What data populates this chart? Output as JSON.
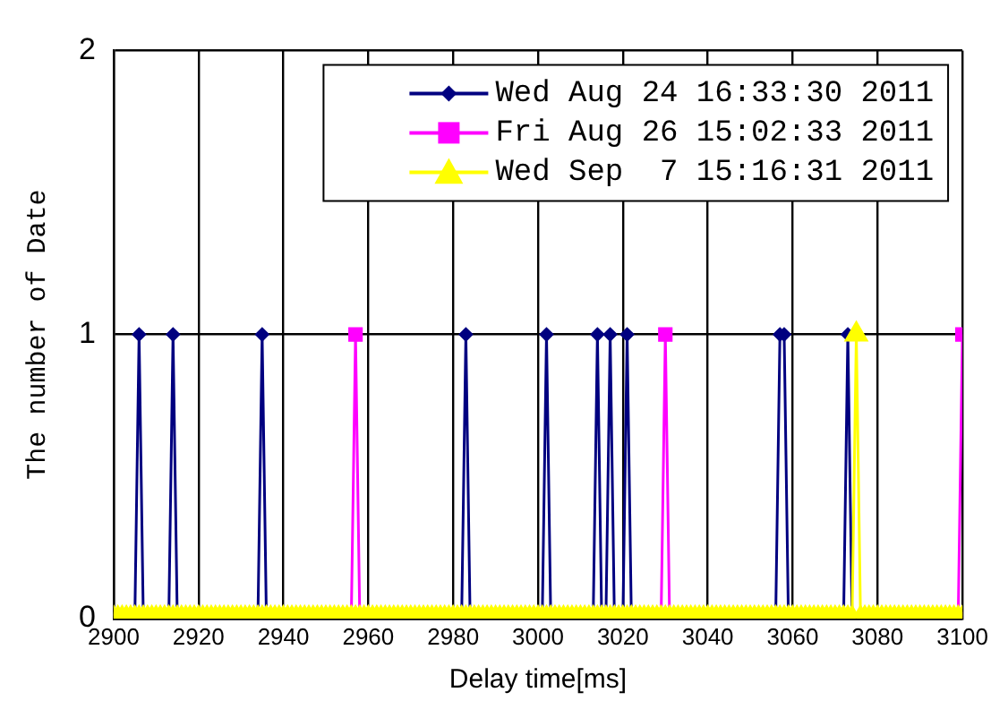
{
  "chart_data": {
    "type": "line",
    "xlabel": "Delay time[ms]",
    "ylabel": "The number of Date",
    "x": [
      2900,
      2901,
      2902,
      2903,
      2904,
      2905,
      2906,
      2907,
      2908,
      2909,
      2910,
      2911,
      2912,
      2913,
      2914,
      2915,
      2916,
      2917,
      2918,
      2919,
      2920,
      2921,
      2922,
      2923,
      2924,
      2925,
      2926,
      2927,
      2928,
      2929,
      2930,
      2931,
      2932,
      2933,
      2934,
      2935,
      2936,
      2937,
      2938,
      2939,
      2940,
      2941,
      2942,
      2943,
      2944,
      2945,
      2946,
      2947,
      2948,
      2949,
      2950,
      2951,
      2952,
      2953,
      2954,
      2955,
      2956,
      2957,
      2958,
      2959,
      2960,
      2961,
      2962,
      2963,
      2964,
      2965,
      2966,
      2967,
      2968,
      2969,
      2970,
      2971,
      2972,
      2973,
      2974,
      2975,
      2976,
      2977,
      2978,
      2979,
      2980,
      2981,
      2982,
      2983,
      2984,
      2985,
      2986,
      2987,
      2988,
      2989,
      2990,
      2991,
      2992,
      2993,
      2994,
      2995,
      2996,
      2997,
      2998,
      2999,
      3000,
      3001,
      3002,
      3003,
      3004,
      3005,
      3006,
      3007,
      3008,
      3009,
      3010,
      3011,
      3012,
      3013,
      3014,
      3015,
      3016,
      3017,
      3018,
      3019,
      3020,
      3021,
      3022,
      3023,
      3024,
      3025,
      3026,
      3027,
      3028,
      3029,
      3030,
      3031,
      3032,
      3033,
      3034,
      3035,
      3036,
      3037,
      3038,
      3039,
      3040,
      3041,
      3042,
      3043,
      3044,
      3045,
      3046,
      3047,
      3048,
      3049,
      3050,
      3051,
      3052,
      3053,
      3054,
      3055,
      3056,
      3057,
      3058,
      3059,
      3060,
      3061,
      3062,
      3063,
      3064,
      3065,
      3066,
      3067,
      3068,
      3069,
      3070,
      3071,
      3072,
      3073,
      3074,
      3075,
      3076,
      3077,
      3078,
      3079,
      3080,
      3081,
      3082,
      3083,
      3084,
      3085,
      3086,
      3087,
      3088,
      3089,
      3090,
      3091,
      3092,
      3093,
      3094,
      3095,
      3096,
      3097,
      3098,
      3099,
      3100
    ],
    "series": [
      {
        "name": "Wed Aug 24 16:33:30 2011",
        "color": "#000080",
        "marker": "diamond",
        "values": [
          null,
          null,
          null,
          null,
          null,
          0,
          1,
          0,
          null,
          null,
          null,
          null,
          null,
          0,
          1,
          0,
          null,
          null,
          null,
          null,
          null,
          null,
          null,
          null,
          null,
          null,
          null,
          null,
          null,
          null,
          null,
          null,
          null,
          null,
          0,
          1,
          0,
          null,
          null,
          null,
          null,
          null,
          null,
          null,
          null,
          null,
          null,
          null,
          null,
          null,
          null,
          null,
          null,
          null,
          null,
          null,
          null,
          null,
          null,
          null,
          null,
          null,
          null,
          null,
          null,
          null,
          null,
          null,
          null,
          null,
          null,
          null,
          null,
          null,
          null,
          null,
          null,
          null,
          null,
          null,
          null,
          null,
          0,
          1,
          0,
          null,
          null,
          null,
          null,
          null,
          null,
          null,
          null,
          null,
          null,
          null,
          null,
          null,
          null,
          null,
          null,
          0,
          1,
          0,
          null,
          null,
          null,
          null,
          null,
          null,
          null,
          null,
          null,
          0,
          1,
          0,
          0,
          1,
          0,
          null,
          0,
          1,
          0,
          null,
          null,
          null,
          null,
          null,
          null,
          null,
          null,
          null,
          null,
          null,
          null,
          null,
          null,
          null,
          null,
          null,
          null,
          null,
          null,
          null,
          null,
          null,
          null,
          null,
          null,
          null,
          null,
          null,
          null,
          null,
          null,
          null,
          0,
          1,
          1,
          0,
          null,
          null,
          null,
          null,
          null,
          null,
          null,
          null,
          null,
          null,
          null,
          null,
          0,
          1,
          0,
          null,
          null,
          null,
          null,
          null,
          null,
          null,
          null,
          null,
          null,
          null,
          null,
          null,
          null,
          null,
          null,
          null,
          null,
          null,
          null,
          null,
          null,
          null,
          null,
          null,
          null
        ]
      },
      {
        "name": "Fri Aug 26 15:02:33 2011",
        "color": "#ff00ff",
        "marker": "square",
        "values": [
          null,
          null,
          null,
          null,
          null,
          null,
          null,
          null,
          null,
          null,
          null,
          null,
          null,
          null,
          null,
          null,
          null,
          null,
          null,
          null,
          null,
          null,
          null,
          null,
          null,
          null,
          null,
          null,
          null,
          null,
          null,
          null,
          null,
          null,
          null,
          null,
          null,
          null,
          null,
          null,
          null,
          null,
          null,
          null,
          null,
          null,
          null,
          null,
          null,
          null,
          null,
          null,
          null,
          null,
          null,
          null,
          0,
          1,
          0,
          null,
          null,
          null,
          null,
          null,
          null,
          null,
          null,
          null,
          null,
          null,
          null,
          null,
          null,
          null,
          null,
          null,
          null,
          null,
          null,
          null,
          null,
          null,
          null,
          null,
          null,
          null,
          null,
          null,
          null,
          null,
          null,
          null,
          null,
          null,
          null,
          null,
          null,
          null,
          null,
          null,
          null,
          null,
          null,
          null,
          null,
          null,
          null,
          null,
          null,
          null,
          null,
          null,
          null,
          null,
          null,
          null,
          null,
          null,
          null,
          null,
          null,
          null,
          null,
          null,
          null,
          null,
          null,
          null,
          null,
          0,
          1,
          0,
          null,
          null,
          null,
          null,
          null,
          null,
          null,
          null,
          null,
          null,
          null,
          null,
          null,
          null,
          null,
          null,
          null,
          null,
          null,
          null,
          null,
          null,
          null,
          null,
          null,
          null,
          null,
          null,
          null,
          null,
          null,
          null,
          null,
          null,
          null,
          null,
          null,
          null,
          null,
          null,
          null,
          null,
          null,
          null,
          null,
          null,
          null,
          null,
          null,
          null,
          null,
          null,
          null,
          null,
          null,
          null,
          null,
          null,
          null,
          null,
          null,
          null,
          null,
          null,
          null,
          null,
          null,
          0,
          1
        ]
      },
      {
        "name": "Wed Sep  7 15:16:31 2011",
        "color": "#ffff00",
        "marker": "triangle",
        "values": [
          0,
          0,
          0,
          0,
          0,
          0,
          0,
          0,
          0,
          0,
          0,
          0,
          0,
          0,
          0,
          0,
          0,
          0,
          0,
          0,
          0,
          0,
          0,
          0,
          0,
          0,
          0,
          0,
          0,
          0,
          0,
          0,
          0,
          0,
          0,
          0,
          0,
          0,
          0,
          0,
          0,
          0,
          0,
          0,
          0,
          0,
          0,
          0,
          0,
          0,
          0,
          0,
          0,
          0,
          0,
          0,
          0,
          0,
          0,
          0,
          0,
          0,
          0,
          0,
          0,
          0,
          0,
          0,
          0,
          0,
          0,
          0,
          0,
          0,
          0,
          0,
          0,
          0,
          0,
          0,
          0,
          0,
          0,
          0,
          0,
          0,
          0,
          0,
          0,
          0,
          0,
          0,
          0,
          0,
          0,
          0,
          0,
          0,
          0,
          0,
          0,
          0,
          0,
          0,
          0,
          0,
          0,
          0,
          0,
          0,
          0,
          0,
          0,
          0,
          0,
          0,
          0,
          0,
          0,
          0,
          0,
          0,
          0,
          0,
          0,
          0,
          0,
          0,
          0,
          0,
          0,
          0,
          0,
          0,
          0,
          0,
          0,
          0,
          0,
          0,
          0,
          0,
          0,
          0,
          0,
          0,
          0,
          0,
          0,
          0,
          0,
          0,
          0,
          0,
          0,
          0,
          0,
          0,
          0,
          0,
          0,
          0,
          0,
          0,
          0,
          0,
          0,
          0,
          0,
          0,
          0,
          0,
          0,
          0,
          0,
          1,
          0,
          0,
          0,
          0,
          0,
          0,
          0,
          0,
          0,
          0,
          0,
          0,
          0,
          0,
          0,
          0,
          0,
          0,
          0,
          0,
          0,
          0,
          0,
          0,
          0
        ]
      }
    ],
    "xlim": [
      2900,
      3100
    ],
    "xticks": [
      2900,
      2920,
      2940,
      2960,
      2980,
      3000,
      3020,
      3040,
      3060,
      3080,
      3100
    ],
    "ylim": [
      0,
      2
    ],
    "yticks": [
      0,
      1,
      2
    ],
    "grid": true,
    "legend": "top right"
  }
}
